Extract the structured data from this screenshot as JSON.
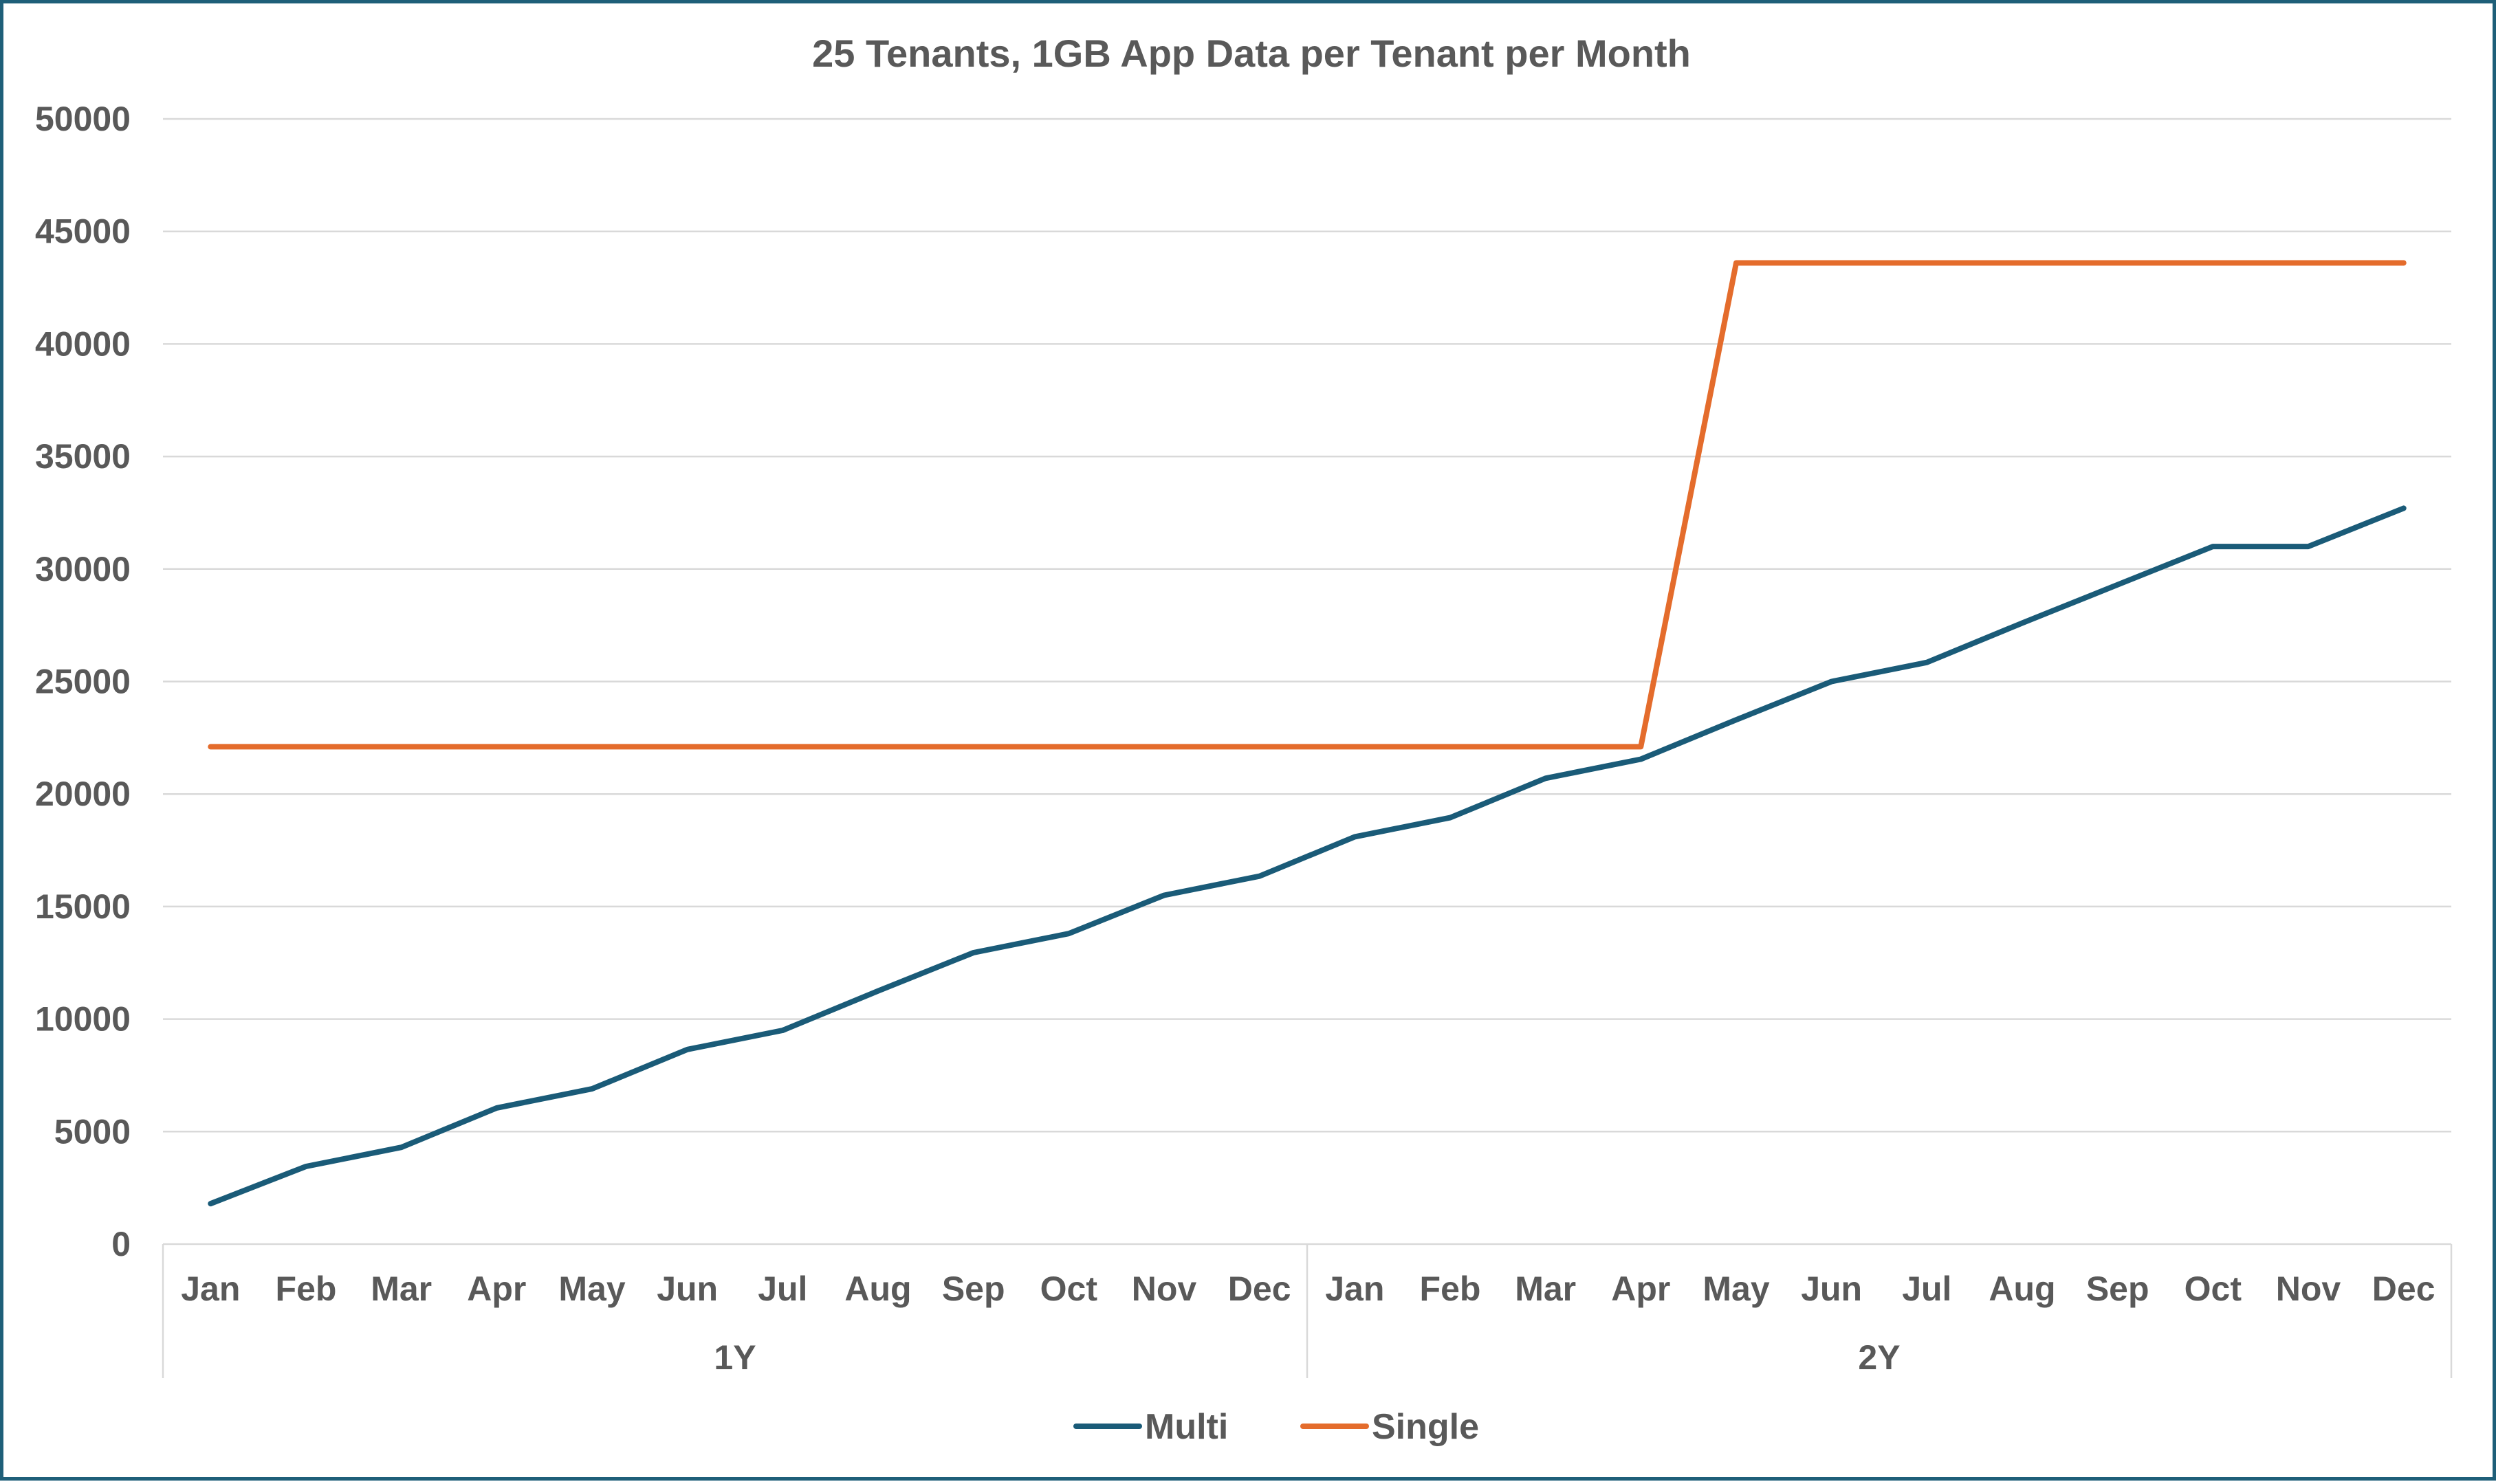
{
  "chart_data": {
    "type": "line",
    "title": "25 Tenants, 1GB App Data per Tenant per Month",
    "xlabel": "",
    "ylabel": "",
    "ylim": [
      0,
      50000
    ],
    "yticks": [
      0,
      5000,
      10000,
      15000,
      20000,
      25000,
      30000,
      35000,
      40000,
      45000,
      50000
    ],
    "grid": true,
    "legend_position": "bottom",
    "categories": [
      "Jan",
      "Feb",
      "Mar",
      "Apr",
      "May",
      "Jun",
      "Jul",
      "Aug",
      "Sep",
      "Oct",
      "Nov",
      "Dec",
      "Jan",
      "Feb",
      "Mar",
      "Apr",
      "May",
      "Jun",
      "Jul",
      "Aug",
      "Sep",
      "Oct",
      "Nov",
      "Dec"
    ],
    "groups": [
      {
        "label": "1Y",
        "count": 12
      },
      {
        "label": "2Y",
        "count": 12
      }
    ],
    "series": [
      {
        "name": "Multi",
        "color": "#1a5b78",
        "values": [
          1800,
          3450,
          4300,
          6050,
          6900,
          8650,
          9500,
          11250,
          12950,
          13800,
          15500,
          16350,
          18100,
          18950,
          20700,
          21550,
          23300,
          25000,
          25850,
          27600,
          29300,
          31000,
          31000,
          32700
        ]
      },
      {
        "name": "Single",
        "color": "#e46c2c",
        "values": [
          22100,
          22100,
          22100,
          22100,
          22100,
          22100,
          22100,
          22100,
          22100,
          22100,
          22100,
          22100,
          22100,
          22100,
          22100,
          22100,
          43600,
          43600,
          43600,
          43600,
          43600,
          43600,
          43600,
          43600
        ]
      }
    ]
  }
}
